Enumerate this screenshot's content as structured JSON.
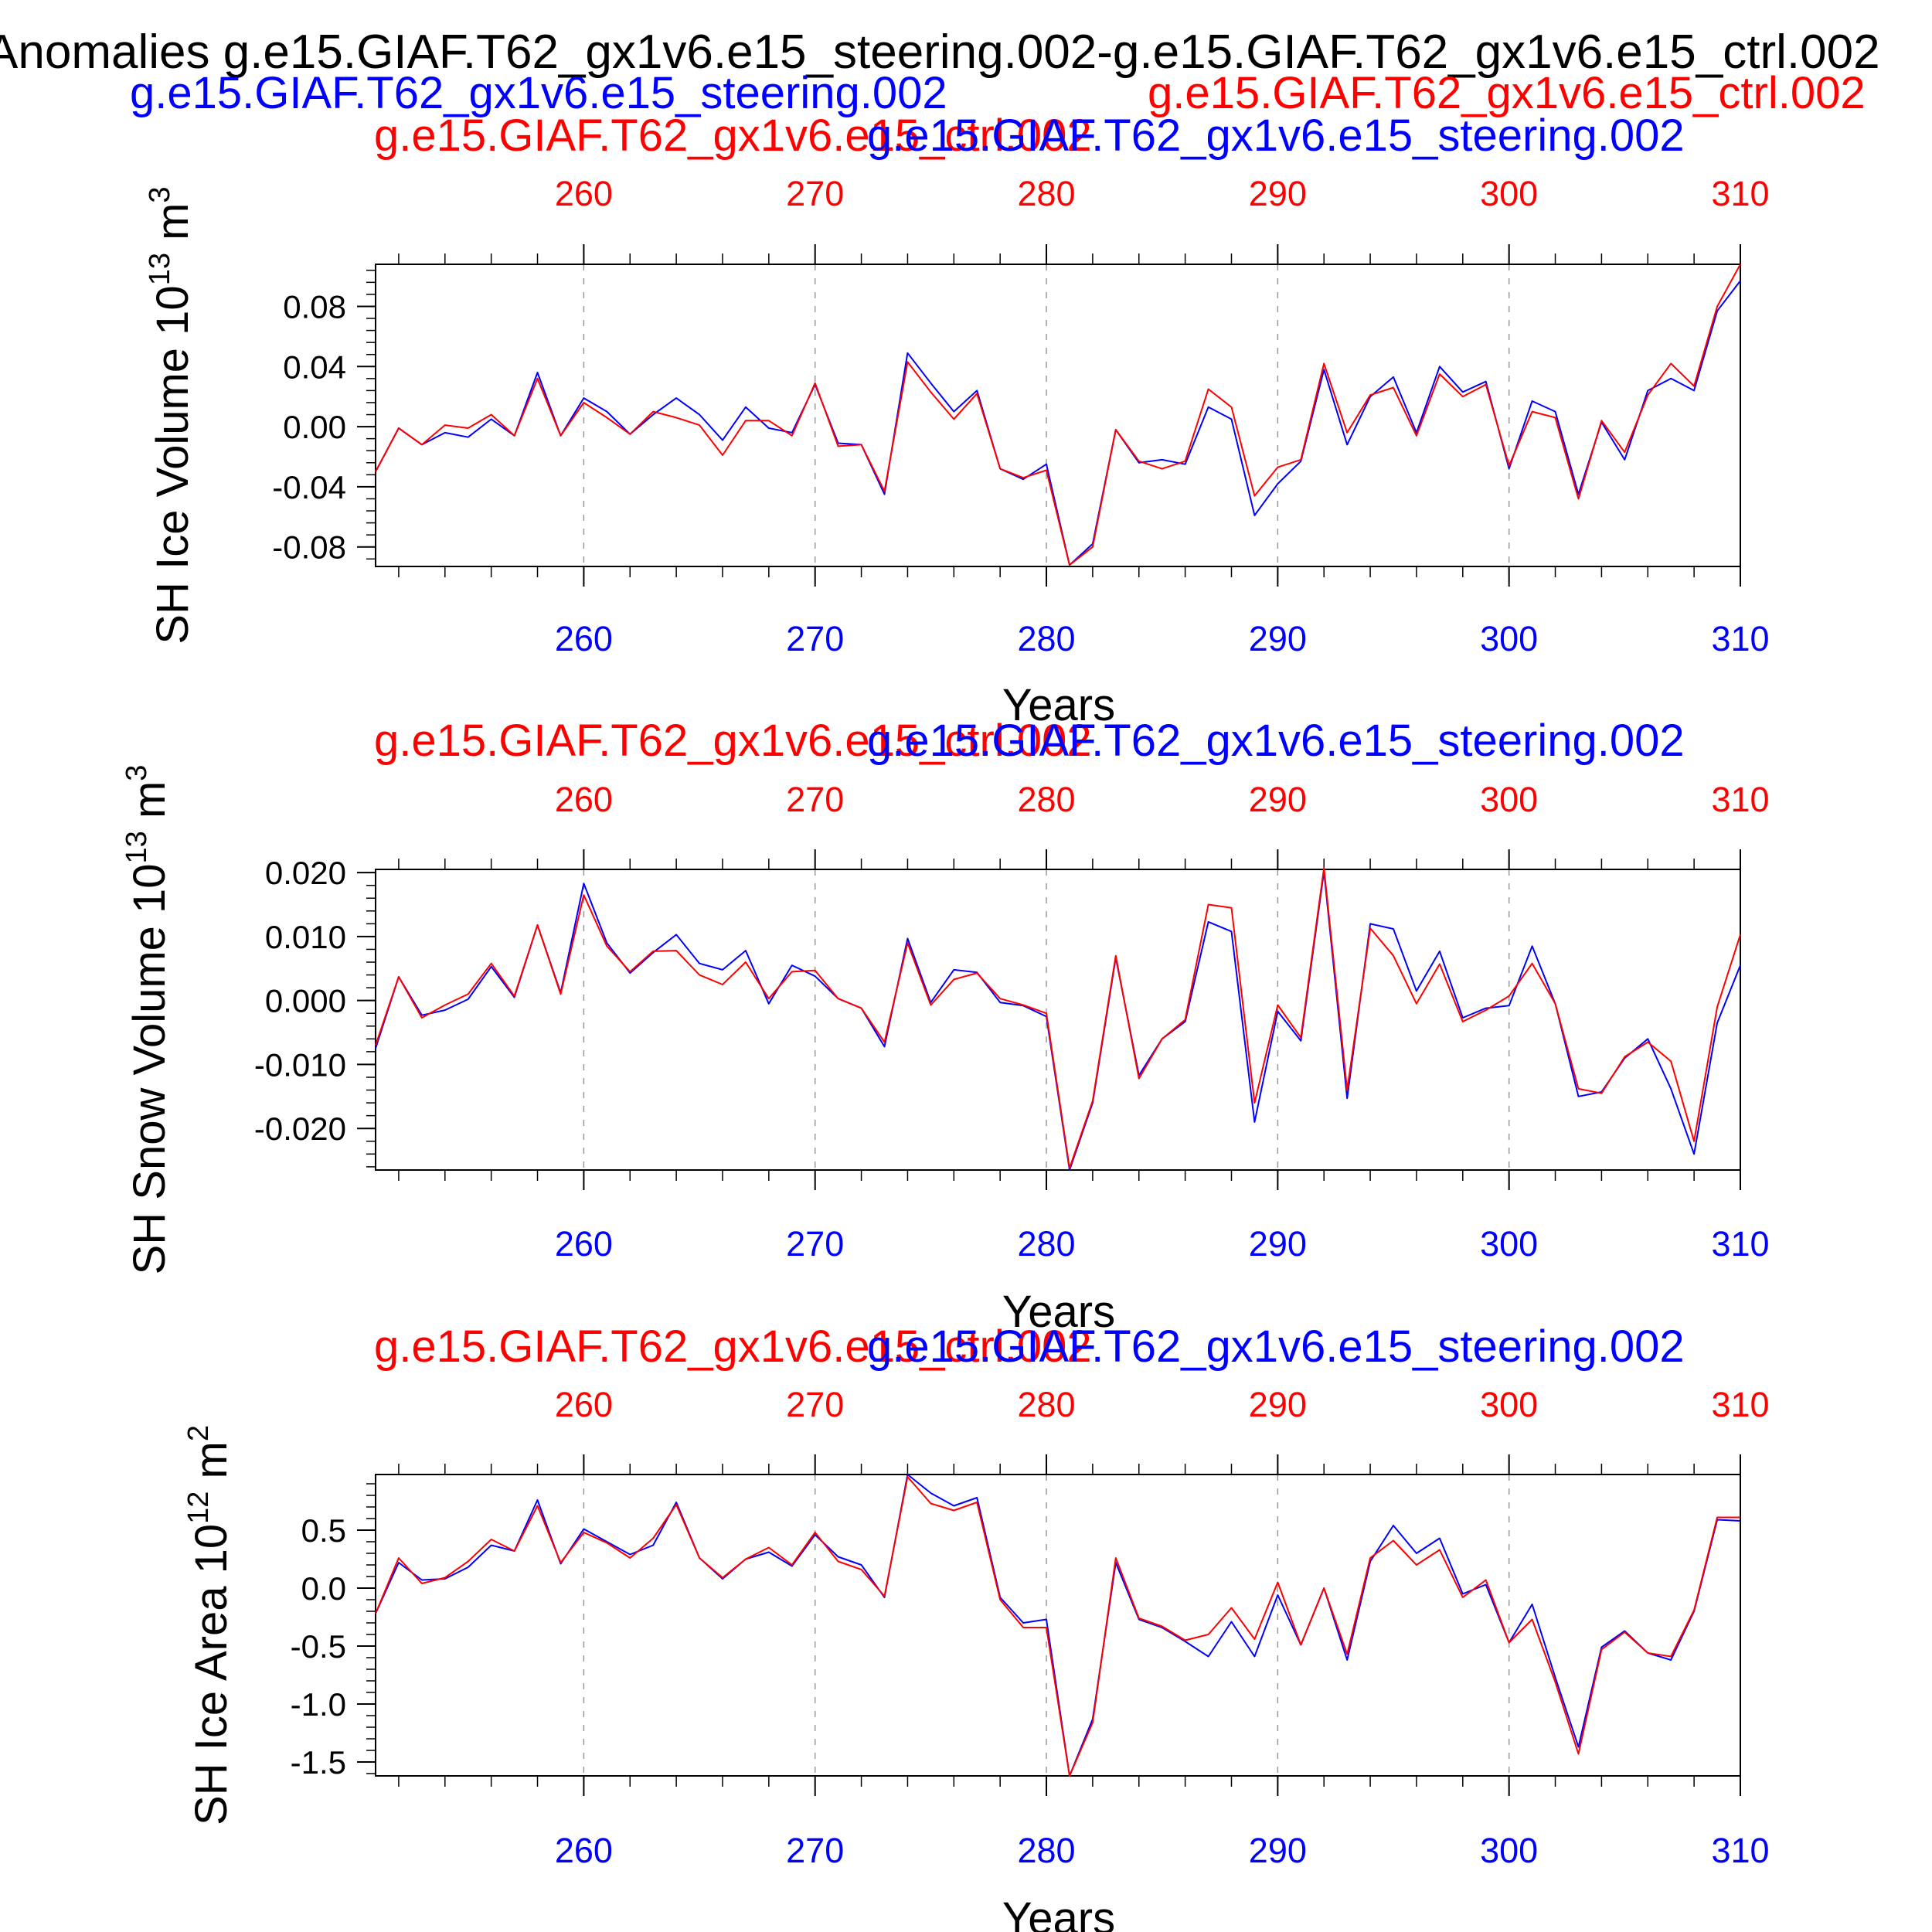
{
  "page_title": "Anomalies g.e15.GIAF.T62_gx1v6.e15_steering.002-g.e15.GIAF.T62_gx1v6.e15_ctrl.002",
  "header": {
    "case_blue": "g.e15.GIAF.T62_gx1v6.e15_steering.002",
    "case_red": "g.e15.GIAF.T62_gx1v6.e15_ctrl.002"
  },
  "colors": {
    "case_a": "#0000ff",
    "case_b": "#ff0000",
    "axis": "#000000",
    "grid": "#999999"
  },
  "chart_data": [
    {
      "type": "line",
      "title_left": "g.e15.GIAF.T62_gx1v6.e15_ctrl.002",
      "title_right": "g.e15.GIAF.T62_gx1v6.e15_steering.002",
      "ylabel_main": "SH Ice Volume 10",
      "ylabel_exp": "13",
      "ylabel_unit": " m",
      "ylabel_unit_exp": "3",
      "xlabel": "Years",
      "xlim": [
        251,
        310
      ],
      "ylim": [
        -0.093,
        0.108
      ],
      "yticks": [
        -0.08,
        -0.04,
        0.0,
        0.04,
        0.08
      ],
      "ytick_labels": [
        "-0.08",
        "-0.04",
        "0.00",
        "0.04",
        "0.08"
      ],
      "xticks": [
        260,
        270,
        280,
        290,
        300,
        310
      ],
      "xtick_labels": [
        "260",
        "270",
        "280",
        "290",
        "300",
        "310"
      ],
      "x_start": 251,
      "series": [
        {
          "name": "g.e15.GIAF.T62_gx1v6.e15_steering.002",
          "color": "#0000ff",
          "values": [
            -0.03,
            -0.001,
            -0.012,
            -0.004,
            -0.007,
            0.005,
            -0.006,
            0.036,
            -0.006,
            0.019,
            0.01,
            -0.005,
            0.008,
            0.019,
            0.008,
            -0.009,
            0.013,
            -0.001,
            -0.004,
            0.028,
            -0.011,
            -0.012,
            -0.045,
            0.049,
            0.029,
            0.01,
            0.024,
            -0.028,
            -0.035,
            -0.025,
            -0.092,
            -0.078,
            -0.002,
            -0.024,
            -0.022,
            -0.025,
            0.013,
            0.005,
            -0.059,
            -0.038,
            -0.023,
            0.038,
            -0.012,
            0.02,
            0.033,
            -0.004,
            0.04,
            0.023,
            0.03,
            -0.028,
            0.017,
            0.01,
            -0.045,
            0.003,
            -0.022,
            0.024,
            0.032,
            0.024,
            0.077,
            0.097
          ]
        },
        {
          "name": "g.e15.GIAF.T62_gx1v6.e15_ctrl.002",
          "color": "#ff0000",
          "values": [
            -0.03,
            -0.001,
            -0.012,
            0.001,
            -0.001,
            0.008,
            -0.006,
            0.032,
            -0.006,
            0.016,
            0.006,
            -0.005,
            0.01,
            0.006,
            0.001,
            -0.019,
            0.004,
            0.004,
            -0.006,
            0.029,
            -0.013,
            -0.012,
            -0.043,
            0.043,
            0.023,
            0.005,
            0.022,
            -0.028,
            -0.034,
            -0.029,
            -0.092,
            -0.08,
            -0.002,
            -0.023,
            -0.028,
            -0.023,
            0.025,
            0.013,
            -0.046,
            -0.027,
            -0.022,
            0.042,
            -0.004,
            0.021,
            0.026,
            -0.006,
            0.035,
            0.02,
            0.028,
            -0.026,
            0.01,
            0.006,
            -0.048,
            0.004,
            -0.017,
            0.021,
            0.042,
            0.027,
            0.08,
            0.108
          ]
        }
      ]
    },
    {
      "type": "line",
      "title_left": "g.e15.GIAF.T62_gx1v6.e15_ctrl.002",
      "title_right": "g.e15.GIAF.T62_gx1v6.e15_steering.002",
      "ylabel_main": "SH Snow Volume 10",
      "ylabel_exp": "13",
      "ylabel_unit": " m",
      "ylabel_unit_exp": "3",
      "xlabel": "Years",
      "xlim": [
        251,
        310
      ],
      "ylim": [
        -0.0265,
        0.0205
      ],
      "yticks": [
        -0.02,
        -0.01,
        0.0,
        0.01,
        0.02
      ],
      "ytick_labels": [
        "-0.020",
        "-0.010",
        "0.000",
        "0.010",
        "0.020"
      ],
      "xticks": [
        260,
        270,
        280,
        290,
        300,
        310
      ],
      "xtick_labels": [
        "260",
        "270",
        "280",
        "290",
        "300",
        "310"
      ],
      "x_start": 251,
      "series": [
        {
          "name": "g.e15.GIAF.T62_gx1v6.e15_steering.002",
          "color": "#0000ff",
          "values": [
            -0.0075,
            0.0037,
            -0.0023,
            -0.0015,
            0.0002,
            0.0053,
            0.0005,
            0.0118,
            0.0012,
            0.0183,
            0.009,
            0.0043,
            0.0075,
            0.0103,
            0.0058,
            0.0048,
            0.0078,
            -0.0005,
            0.0055,
            0.0038,
            0.0003,
            -0.0012,
            -0.0072,
            0.0097,
            -0.0003,
            0.0048,
            0.0044,
            -0.0003,
            -0.0008,
            -0.0025,
            -0.0265,
            -0.016,
            0.0067,
            -0.0117,
            -0.006,
            -0.0033,
            0.0123,
            0.0108,
            -0.019,
            -0.0017,
            -0.0063,
            0.0202,
            -0.0153,
            0.012,
            0.0112,
            0.0015,
            0.0077,
            -0.0027,
            -0.0012,
            -0.0008,
            0.0085,
            -0.0005,
            -0.015,
            -0.0143,
            -0.009,
            -0.006,
            -0.0138,
            -0.024,
            -0.0035,
            0.0055
          ]
        },
        {
          "name": "g.e15.GIAF.T62_gx1v6.e15_ctrl.002",
          "color": "#ff0000",
          "values": [
            -0.007,
            0.0037,
            -0.0027,
            -0.0007,
            0.001,
            0.0058,
            0.0007,
            0.0118,
            0.001,
            0.0165,
            0.0085,
            0.0045,
            0.0077,
            0.0078,
            0.004,
            0.0025,
            0.006,
            0.0003,
            0.0045,
            0.0047,
            0.0003,
            -0.0012,
            -0.0065,
            0.009,
            -0.0007,
            0.0033,
            0.0043,
            0.0003,
            -0.0007,
            -0.002,
            -0.0262,
            -0.0157,
            0.007,
            -0.0122,
            -0.006,
            -0.003,
            0.015,
            0.0145,
            -0.016,
            -0.0007,
            -0.0058,
            0.0207,
            -0.014,
            0.0113,
            0.007,
            -0.0005,
            0.0057,
            -0.0033,
            -0.0015,
            0.0007,
            0.0058,
            -0.0005,
            -0.0138,
            -0.0145,
            -0.0088,
            -0.0065,
            -0.0095,
            -0.022,
            -0.001,
            0.0103
          ]
        }
      ]
    },
    {
      "type": "line",
      "title_left": "g.e15.GIAF.T62_gx1v6.e15_ctrl.002",
      "title_right": "g.e15.GIAF.T62_gx1v6.e15_steering.002",
      "ylabel_main": "SH Ice Area 10",
      "ylabel_exp": "12",
      "ylabel_unit": " m",
      "ylabel_unit_exp": "2",
      "xlabel": "Years",
      "xlim": [
        251,
        310
      ],
      "ylim": [
        -1.62,
        0.98
      ],
      "yticks": [
        -1.5,
        -1.0,
        -0.5,
        0.0,
        0.5
      ],
      "ytick_labels": [
        "-1.5",
        "-1.0",
        "-0.5",
        "0.0",
        "0.5"
      ],
      "xticks": [
        260,
        270,
        280,
        290,
        300,
        310
      ],
      "xtick_labels": [
        "260",
        "270",
        "280",
        "290",
        "300",
        "310"
      ],
      "x_start": 251,
      "series": [
        {
          "name": "g.e15.GIAF.T62_gx1v6.e15_steering.002",
          "color": "#0000ff",
          "values": [
            -0.22,
            0.22,
            0.07,
            0.08,
            0.18,
            0.37,
            0.32,
            0.76,
            0.21,
            0.51,
            0.4,
            0.29,
            0.37,
            0.74,
            0.26,
            0.08,
            0.25,
            0.31,
            0.19,
            0.46,
            0.27,
            0.2,
            -0.08,
            0.98,
            0.82,
            0.71,
            0.78,
            -0.08,
            -0.3,
            -0.27,
            -1.62,
            -1.13,
            0.22,
            -0.27,
            -0.34,
            -0.46,
            -0.59,
            -0.29,
            -0.59,
            -0.06,
            -0.49,
            0.0,
            -0.62,
            0.23,
            0.54,
            0.3,
            0.43,
            -0.05,
            0.03,
            -0.47,
            -0.14,
            -0.77,
            -1.37,
            -0.51,
            -0.37,
            -0.56,
            -0.62,
            -0.2,
            0.59,
            0.58
          ]
        },
        {
          "name": "g.e15.GIAF.T62_gx1v6.e15_ctrl.002",
          "color": "#ff0000",
          "values": [
            -0.22,
            0.26,
            0.04,
            0.09,
            0.23,
            0.42,
            0.32,
            0.71,
            0.22,
            0.48,
            0.39,
            0.26,
            0.43,
            0.72,
            0.26,
            0.09,
            0.25,
            0.35,
            0.2,
            0.48,
            0.23,
            0.16,
            -0.07,
            0.96,
            0.73,
            0.67,
            0.74,
            -0.1,
            -0.34,
            -0.34,
            -1.62,
            -1.16,
            0.26,
            -0.26,
            -0.33,
            -0.45,
            -0.4,
            -0.17,
            -0.44,
            0.05,
            -0.49,
            0.0,
            -0.57,
            0.26,
            0.41,
            0.2,
            0.33,
            -0.08,
            0.07,
            -0.47,
            -0.27,
            -0.81,
            -1.43,
            -0.53,
            -0.38,
            -0.56,
            -0.59,
            -0.19,
            0.61,
            0.61
          ]
        }
      ]
    }
  ]
}
